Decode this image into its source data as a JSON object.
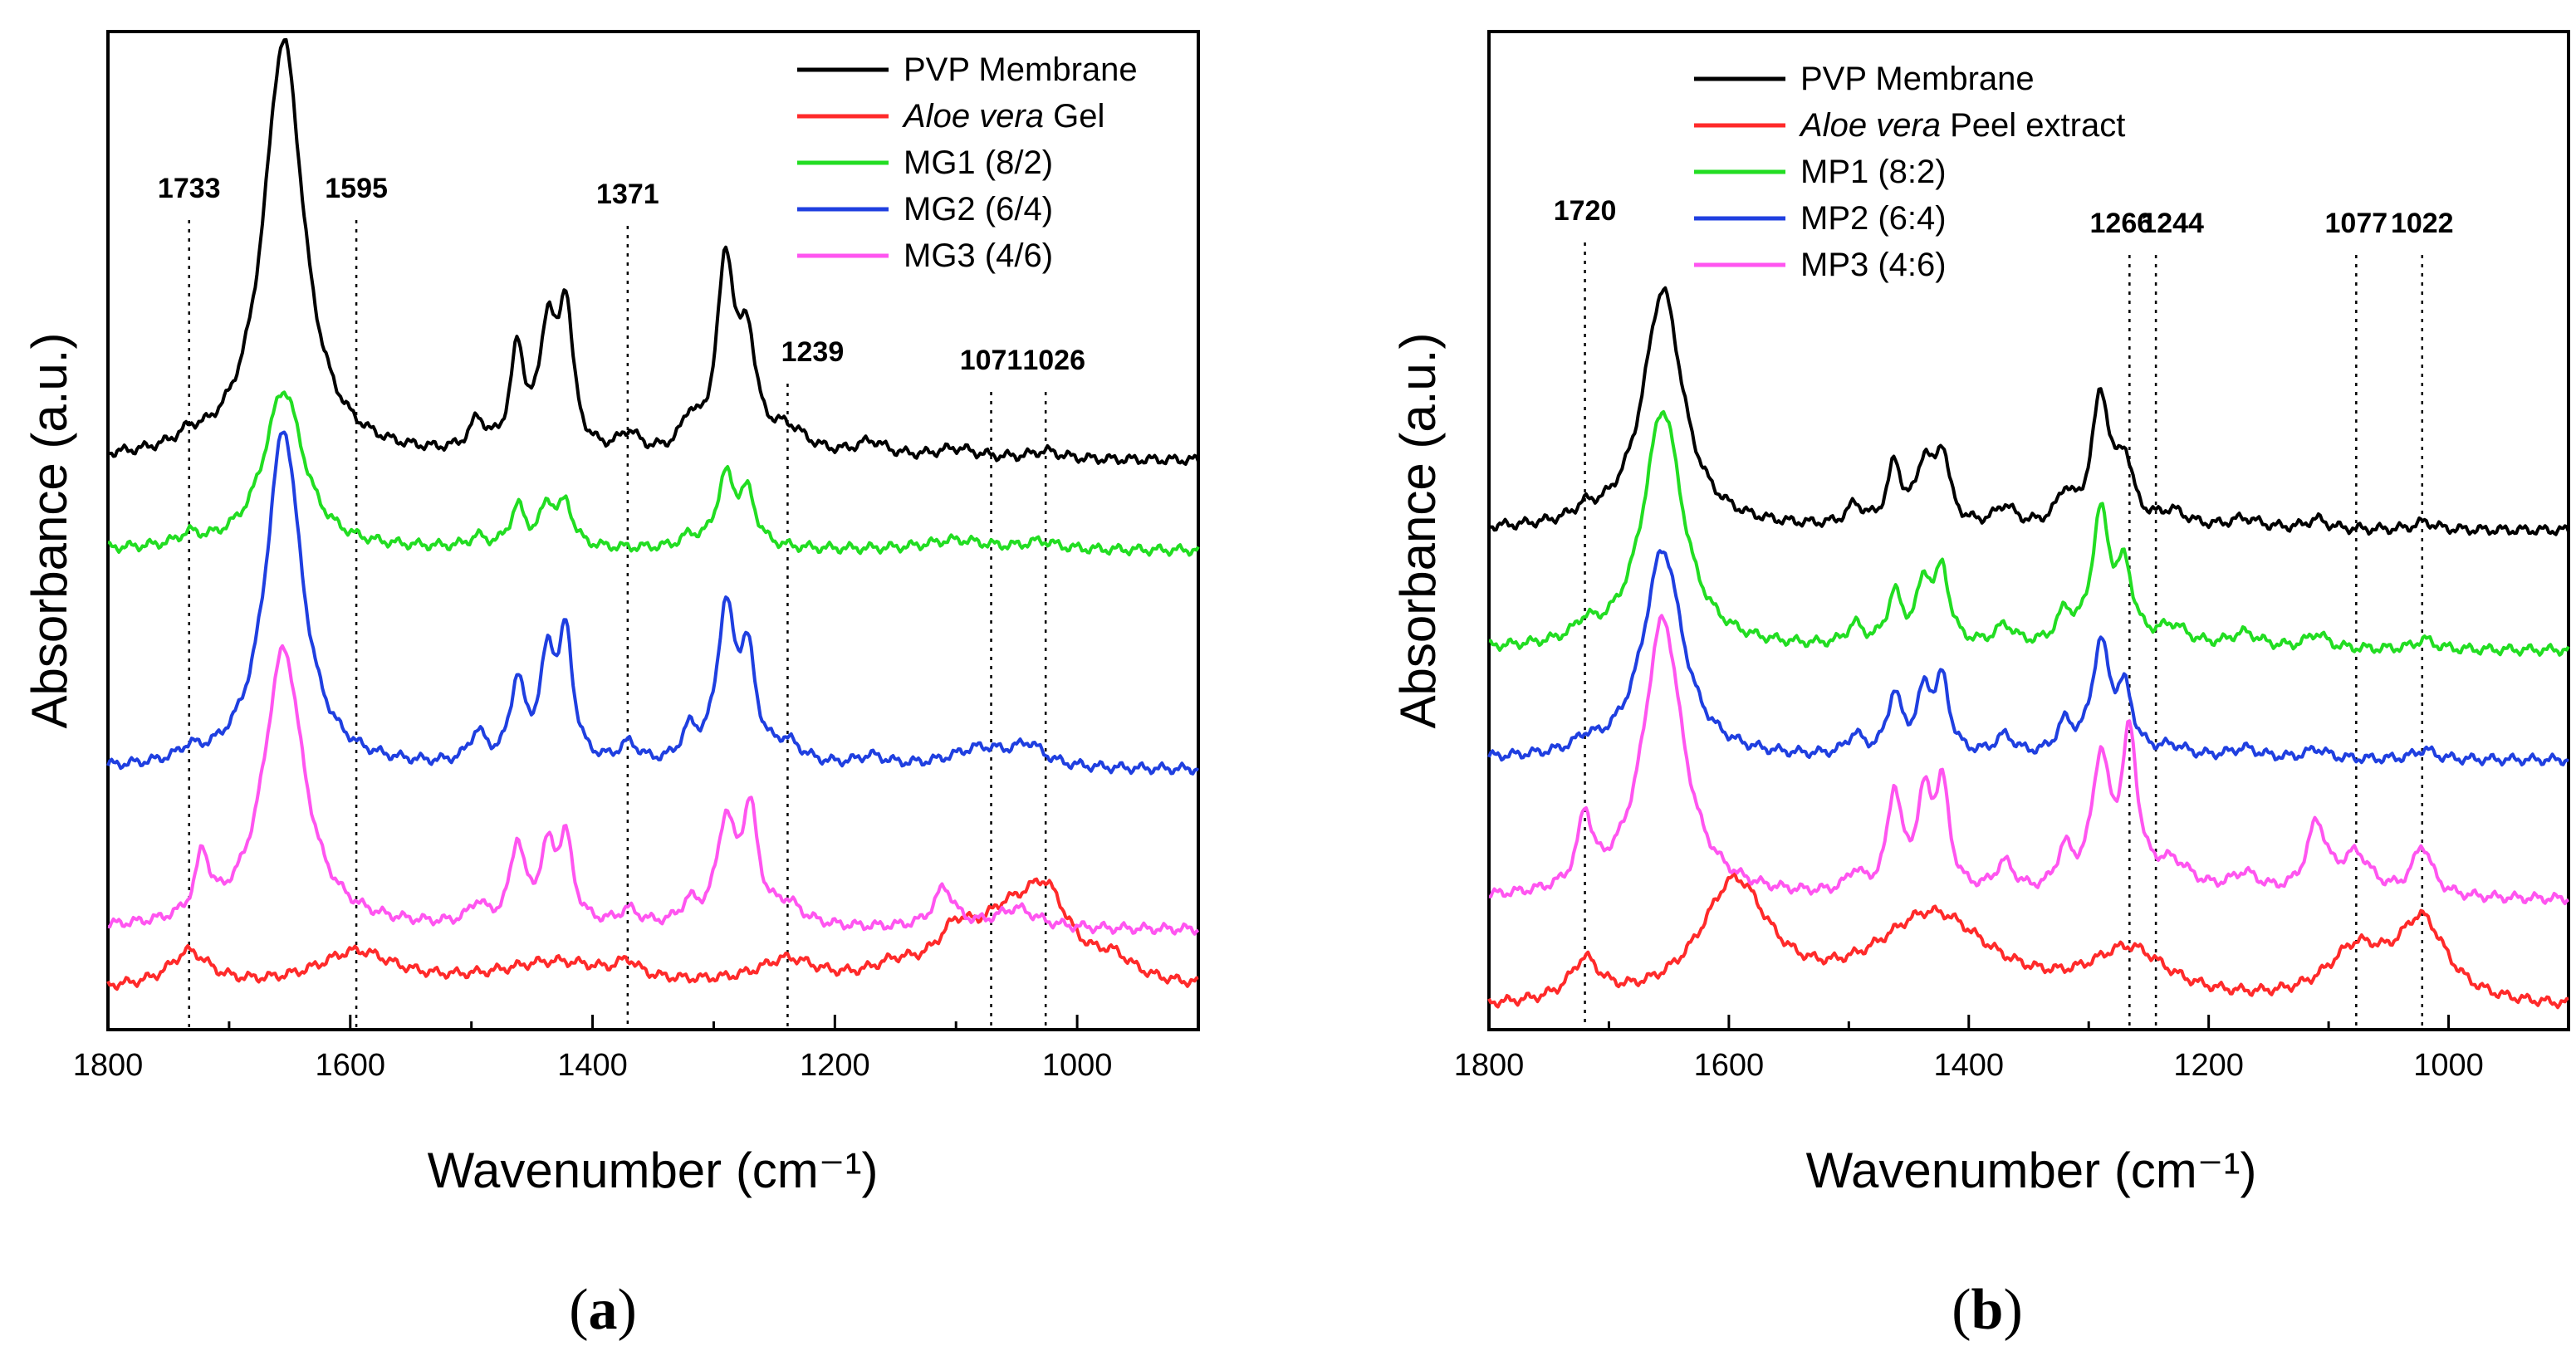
{
  "figure": {
    "panels": [
      "a",
      "b"
    ]
  },
  "chart_data": [
    {
      "id": "a",
      "type": "line",
      "panel_label": "a",
      "xlabel": "Wavenumber (cm⁻¹)",
      "ylabel": "Absorbance (a.u.)",
      "xlim": [
        1800,
        900
      ],
      "ylim": [
        0,
        100
      ],
      "x_ticks": [
        1800,
        1600,
        1400,
        1200,
        1000
      ],
      "peak_markers": [
        1733,
        1595,
        1371,
        1239,
        1071,
        1026
      ],
      "series": [
        {
          "name": "PVP Membrane",
          "legend_italic": "",
          "legend_rest": "PVP Membrane",
          "color": "#000000",
          "baseline": 57,
          "peaks": [
            [
              1733,
              1.0,
              12
            ],
            [
              1655,
              42,
              20
            ],
            [
              1495,
              3,
              8
            ],
            [
              1462,
              10,
              7
            ],
            [
              1437,
              12,
              8
            ],
            [
              1422,
              14,
              7
            ],
            [
              1370,
              2,
              10
            ],
            [
              1320,
              3,
              8
            ],
            [
              1290,
              19,
              9
            ],
            [
              1272,
              10,
              8
            ],
            [
              1239,
              2.5,
              20
            ],
            [
              1170,
              1.5,
              15
            ],
            [
              1100,
              1.0,
              20
            ],
            [
              1026,
              0.8,
              15
            ]
          ]
        },
        {
          "name": "Aloe vera Gel",
          "legend_italic": "Aloe vera",
          "legend_rest": " Gel",
          "color": "#ff2a2a",
          "baseline": 4,
          "peaks": [
            [
              1733,
              3.5,
              20
            ],
            [
              1595,
              3.5,
              40
            ],
            [
              1430,
              2.5,
              60
            ],
            [
              1371,
              1.5,
              10
            ],
            [
              1239,
              2.5,
              30
            ],
            [
              1150,
              1.5,
              25
            ],
            [
              1100,
              4,
              20
            ],
            [
              1060,
              5,
              30
            ],
            [
              1026,
              8,
              25
            ],
            [
              970,
              2,
              20
            ]
          ]
        },
        {
          "name": "MG1 (8/2)",
          "legend_italic": "",
          "legend_rest": "MG1 (8/2)",
          "color": "#22dd22",
          "baseline": 48,
          "peaks": [
            [
              1733,
              1.0,
              10
            ],
            [
              1655,
              16,
              20
            ],
            [
              1495,
              1,
              8
            ],
            [
              1462,
              4,
              7
            ],
            [
              1437,
              4,
              8
            ],
            [
              1422,
              4,
              7
            ],
            [
              1320,
              1,
              8
            ],
            [
              1290,
              7,
              9
            ],
            [
              1272,
              5,
              8
            ],
            [
              1100,
              1,
              30
            ],
            [
              1030,
              0.8,
              15
            ]
          ]
        },
        {
          "name": "MG2 (6/4)",
          "legend_italic": "",
          "legend_rest": "MG2 (6/4)",
          "color": "#1f3fe0",
          "baseline": 26,
          "peaks": [
            [
              1733,
              1.0,
              10
            ],
            [
              1655,
              34,
              18
            ],
            [
              1495,
              3,
              8
            ],
            [
              1462,
              8,
              7
            ],
            [
              1437,
              10,
              8
            ],
            [
              1422,
              12,
              7
            ],
            [
              1370,
              2,
              10
            ],
            [
              1320,
              3,
              8
            ],
            [
              1290,
              15,
              9
            ],
            [
              1272,
              10,
              8
            ],
            [
              1239,
              2,
              15
            ],
            [
              1170,
              1,
              15
            ],
            [
              1080,
              2,
              30
            ],
            [
              1040,
              2,
              15
            ]
          ]
        },
        {
          "name": "MG3 (4/6)",
          "legend_italic": "",
          "legend_rest": "MG3 (4/6)",
          "color": "#ff55f0",
          "baseline": 10,
          "peaks": [
            [
              1722,
              6,
              7
            ],
            [
              1655,
              28,
              20
            ],
            [
              1495,
              2,
              8
            ],
            [
              1462,
              8,
              7
            ],
            [
              1437,
              7,
              8
            ],
            [
              1422,
              8,
              7
            ],
            [
              1370,
              1.5,
              10
            ],
            [
              1320,
              2,
              8
            ],
            [
              1290,
              10,
              9
            ],
            [
              1270,
              11,
              8
            ],
            [
              1239,
              2,
              15
            ],
            [
              1110,
              4,
              10
            ],
            [
              1050,
              2,
              20
            ]
          ]
        }
      ]
    },
    {
      "id": "b",
      "type": "line",
      "panel_label": "b",
      "xlabel": "Wavenumber (cm⁻¹)",
      "ylabel": "Absorbance (a.u.)",
      "xlim": [
        1800,
        900
      ],
      "ylim": [
        0,
        100
      ],
      "x_ticks": [
        1800,
        1600,
        1400,
        1200,
        1000
      ],
      "peak_markers": [
        1720,
        1266,
        1244,
        1077,
        1022
      ],
      "series": [
        {
          "name": "PVP Membrane",
          "legend_italic": "",
          "legend_rest": "PVP Membrane",
          "color": "#000000",
          "baseline": 50,
          "peaks": [
            [
              1720,
              1.0,
              10
            ],
            [
              1655,
              24,
              20
            ],
            [
              1495,
              2,
              8
            ],
            [
              1462,
              6,
              7
            ],
            [
              1437,
              6,
              8
            ],
            [
              1422,
              7,
              7
            ],
            [
              1370,
              2,
              10
            ],
            [
              1320,
              3,
              8
            ],
            [
              1290,
              13,
              9
            ],
            [
              1270,
              6,
              8
            ],
            [
              1230,
              1.5,
              15
            ],
            [
              1170,
              1,
              15
            ],
            [
              1110,
              1,
              10
            ],
            [
              1020,
              0.8,
              10
            ]
          ]
        },
        {
          "name": "Aloe vera Peel extract",
          "legend_italic": "Aloe vera",
          "legend_rest": " Peel extract",
          "color": "#ff2a2a",
          "baseline": 2,
          "peaks": [
            [
              1720,
              4,
              15
            ],
            [
              1595,
              12,
              35
            ],
            [
              1430,
              9,
              60
            ],
            [
              1266,
              5,
              40
            ],
            [
              1077,
              5,
              30
            ],
            [
              1022,
              8,
              25
            ]
          ]
        },
        {
          "name": "MP1 (8:2)",
          "legend_italic": "",
          "legend_rest": "MP1 (8:2)",
          "color": "#22dd22",
          "baseline": 38,
          "peaks": [
            [
              1720,
              1.5,
              10
            ],
            [
              1655,
              24,
              20
            ],
            [
              1495,
              2,
              8
            ],
            [
              1462,
              5,
              7
            ],
            [
              1437,
              6,
              8
            ],
            [
              1422,
              7,
              7
            ],
            [
              1370,
              2,
              10
            ],
            [
              1320,
              3,
              8
            ],
            [
              1290,
              13,
              9
            ],
            [
              1270,
              7,
              8
            ],
            [
              1230,
              2,
              15
            ],
            [
              1170,
              1.5,
              15
            ],
            [
              1110,
              1.5,
              10
            ],
            [
              1020,
              1,
              10
            ]
          ]
        },
        {
          "name": "MP2 (6:4)",
          "legend_italic": "",
          "legend_rest": "MP2 (6:4)",
          "color": "#1f3fe0",
          "baseline": 27,
          "peaks": [
            [
              1720,
              1,
              10
            ],
            [
              1655,
              21,
              20
            ],
            [
              1495,
              2,
              8
            ],
            [
              1462,
              6,
              7
            ],
            [
              1437,
              6,
              8
            ],
            [
              1422,
              7,
              7
            ],
            [
              1370,
              2,
              10
            ],
            [
              1320,
              3,
              8
            ],
            [
              1290,
              11,
              9
            ],
            [
              1270,
              6,
              8
            ],
            [
              1230,
              1,
              15
            ],
            [
              1170,
              1,
              15
            ],
            [
              1110,
              1,
              10
            ],
            [
              1020,
              1,
              10
            ]
          ]
        },
        {
          "name": "MP3 (4:6)",
          "legend_italic": "",
          "legend_rest": "MP3 (4:6)",
          "color": "#ff55f0",
          "baseline": 13,
          "peaks": [
            [
              1720,
              7,
              7
            ],
            [
              1655,
              28,
              20
            ],
            [
              1495,
              2,
              8
            ],
            [
              1462,
              10,
              7
            ],
            [
              1437,
              9,
              8
            ],
            [
              1422,
              10,
              7
            ],
            [
              1370,
              3,
              10
            ],
            [
              1320,
              4,
              8
            ],
            [
              1290,
              13,
              9
            ],
            [
              1266,
              15,
              8
            ],
            [
              1230,
              3,
              20
            ],
            [
              1170,
              2,
              15
            ],
            [
              1110,
              7,
              10
            ],
            [
              1077,
              4,
              15
            ],
            [
              1022,
              5,
              10
            ]
          ]
        }
      ]
    }
  ]
}
